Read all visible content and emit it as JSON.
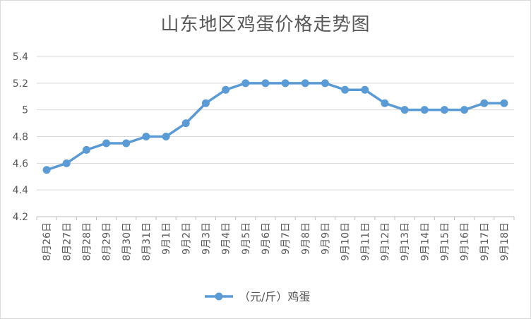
{
  "chart_data": {
    "type": "line",
    "title": "山东地区鸡蛋价格走势图",
    "categories": [
      "8月26日",
      "8月27日",
      "8月28日",
      "8月29日",
      "8月30日",
      "8月31日",
      "9月1日",
      "9月2日",
      "9月3日",
      "9月4日",
      "9月5日",
      "9月6日",
      "9月7日",
      "9月8日",
      "9月9日",
      "9月10日",
      "9月11日",
      "9月12日",
      "9月13日",
      "9月14日",
      "9月15日",
      "9月16日",
      "9月17日",
      "9月18日"
    ],
    "series": [
      {
        "name": "（元/斤）鸡蛋",
        "values": [
          4.55,
          4.6,
          4.7,
          4.75,
          4.75,
          4.8,
          4.8,
          4.9,
          5.05,
          5.15,
          5.2,
          5.2,
          5.2,
          5.2,
          5.2,
          5.15,
          5.15,
          5.05,
          5.0,
          5.0,
          5.0,
          5.0,
          5.05,
          5.05
        ]
      }
    ],
    "yticks": [
      "4.2",
      "4.4",
      "4.6",
      "4.8",
      "5",
      "5.2",
      "5.4"
    ],
    "ylim": [
      4.2,
      5.4
    ],
    "grid": true,
    "legend": "bottom",
    "color": "#5b9bd5"
  }
}
